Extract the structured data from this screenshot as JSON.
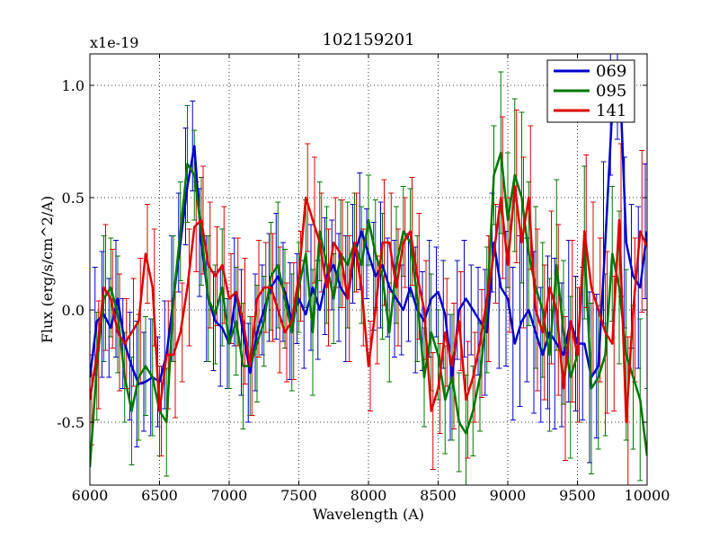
{
  "chart_data": {
    "type": "line",
    "title": "102159201",
    "xlabel": "Wavelength (A)",
    "ylabel": "Flux (erg/s/cm^2/A)",
    "offset_text": "x1e-19",
    "xlim": [
      6000,
      10000
    ],
    "ylim": [
      -0.78,
      1.14
    ],
    "xticks": [
      6000,
      6500,
      7000,
      7500,
      8000,
      8500,
      9000,
      9500,
      10000
    ],
    "xtick_labels": [
      "6000",
      "6500",
      "7000",
      "7500",
      "8000",
      "8500",
      "9000",
      "9500",
      "10000"
    ],
    "yticks": [
      -0.5,
      0.0,
      0.5,
      1.0
    ],
    "ytick_labels": [
      "-0.5",
      "0.0",
      "0.5",
      "1.0"
    ],
    "grid": true,
    "legend_position": "top-right",
    "x": [
      6000,
      6050,
      6100,
      6150,
      6200,
      6250,
      6300,
      6350,
      6400,
      6450,
      6500,
      6550,
      6600,
      6650,
      6700,
      6750,
      6800,
      6850,
      6900,
      6950,
      7000,
      7050,
      7100,
      7150,
      7200,
      7250,
      7300,
      7350,
      7400,
      7450,
      7500,
      7550,
      7600,
      7650,
      7700,
      7750,
      7800,
      7850,
      7900,
      7950,
      8000,
      8050,
      8100,
      8150,
      8200,
      8250,
      8300,
      8350,
      8400,
      8450,
      8500,
      8550,
      8600,
      8650,
      8700,
      8750,
      8800,
      8850,
      8900,
      8950,
      9000,
      9050,
      9100,
      9150,
      9200,
      9250,
      9300,
      9350,
      9400,
      9450,
      9500,
      9550,
      9600,
      9650,
      9700,
      9750,
      9800,
      9850,
      9900,
      9950,
      10000
    ],
    "series": [
      {
        "name": "069",
        "color": "#0000cc",
        "values": [
          -0.3,
          -0.05,
          -0.02,
          -0.08,
          0.05,
          -0.15,
          -0.25,
          -0.33,
          -0.32,
          -0.3,
          -0.32,
          -0.2,
          0.05,
          0.3,
          0.55,
          0.73,
          0.3,
          0.05,
          -0.05,
          -0.08,
          -0.15,
          0.08,
          -0.1,
          -0.28,
          -0.1,
          0.0,
          0.1,
          0.15,
          0.08,
          -0.05,
          0.05,
          -0.02,
          0.1,
          0.0,
          0.15,
          0.2,
          0.1,
          0.05,
          0.25,
          0.35,
          0.25,
          0.15,
          0.2,
          0.1,
          0.05,
          0.0,
          0.1,
          0.0,
          -0.05,
          0.05,
          0.08,
          -0.02,
          -0.3,
          0.0,
          0.05,
          0.0,
          -0.05,
          -0.1,
          0.3,
          0.1,
          0.05,
          -0.15,
          -0.05,
          0.0,
          -0.1,
          -0.2,
          -0.1,
          -0.15,
          -0.2,
          -0.05,
          -0.15,
          -0.15,
          -0.3,
          -0.25,
          0.3,
          0.9,
          1.1,
          0.3,
          0.15,
          0.1,
          0.35
        ]
      },
      {
        "name": "095",
        "color": "#007700",
        "values": [
          -0.7,
          -0.25,
          0.05,
          0.1,
          -0.02,
          -0.3,
          -0.45,
          -0.3,
          -0.25,
          -0.3,
          -0.45,
          -0.5,
          0.05,
          0.35,
          0.65,
          0.6,
          0.35,
          0.05,
          -0.02,
          0.1,
          -0.15,
          -0.05,
          -0.25,
          -0.25,
          -0.15,
          -0.05,
          0.15,
          0.2,
          0.05,
          -0.1,
          0.1,
          0.25,
          -0.1,
          0.35,
          0.2,
          0.05,
          0.25,
          0.2,
          0.3,
          0.2,
          0.4,
          0.25,
          0.15,
          -0.1,
          0.2,
          0.35,
          0.3,
          0.05,
          -0.3,
          -0.1,
          -0.2,
          -0.4,
          -0.3,
          -0.5,
          -0.55,
          -0.45,
          -0.3,
          0.0,
          0.6,
          0.7,
          0.4,
          0.6,
          0.5,
          0.25,
          0.1,
          0.0,
          -0.2,
          0.2,
          -0.1,
          -0.3,
          -0.2,
          0.3,
          -0.35,
          -0.3,
          -0.2,
          0.25,
          0.1,
          -0.2,
          -0.3,
          -0.4,
          -0.65
        ]
      },
      {
        "name": "141",
        "color": "#dd0000",
        "values": [
          -0.4,
          -0.2,
          0.1,
          0.05,
          -0.1,
          -0.15,
          -0.1,
          -0.05,
          0.25,
          0.1,
          -0.45,
          -0.2,
          -0.2,
          -0.1,
          0.1,
          0.37,
          0.4,
          0.2,
          0.15,
          0.2,
          0.05,
          0.08,
          -0.05,
          -0.25,
          0.05,
          0.1,
          0.1,
          0.0,
          -0.1,
          -0.05,
          0.15,
          0.5,
          0.4,
          0.3,
          0.1,
          0.3,
          0.25,
          0.05,
          0.3,
          0.1,
          -0.25,
          0.0,
          0.3,
          0.3,
          0.1,
          0.3,
          0.35,
          0.15,
          0.0,
          -0.45,
          -0.35,
          -0.1,
          -0.25,
          -0.05,
          -0.4,
          -0.3,
          -0.15,
          0.05,
          0.25,
          0.5,
          0.2,
          0.55,
          0.3,
          0.5,
          0.0,
          -0.1,
          0.1,
          0.0,
          -0.35,
          -0.05,
          -0.2,
          0.35,
          0.1,
          0.0,
          -0.1,
          -0.15,
          0.4,
          -0.5,
          0.0,
          0.35,
          0.28
        ]
      }
    ]
  }
}
